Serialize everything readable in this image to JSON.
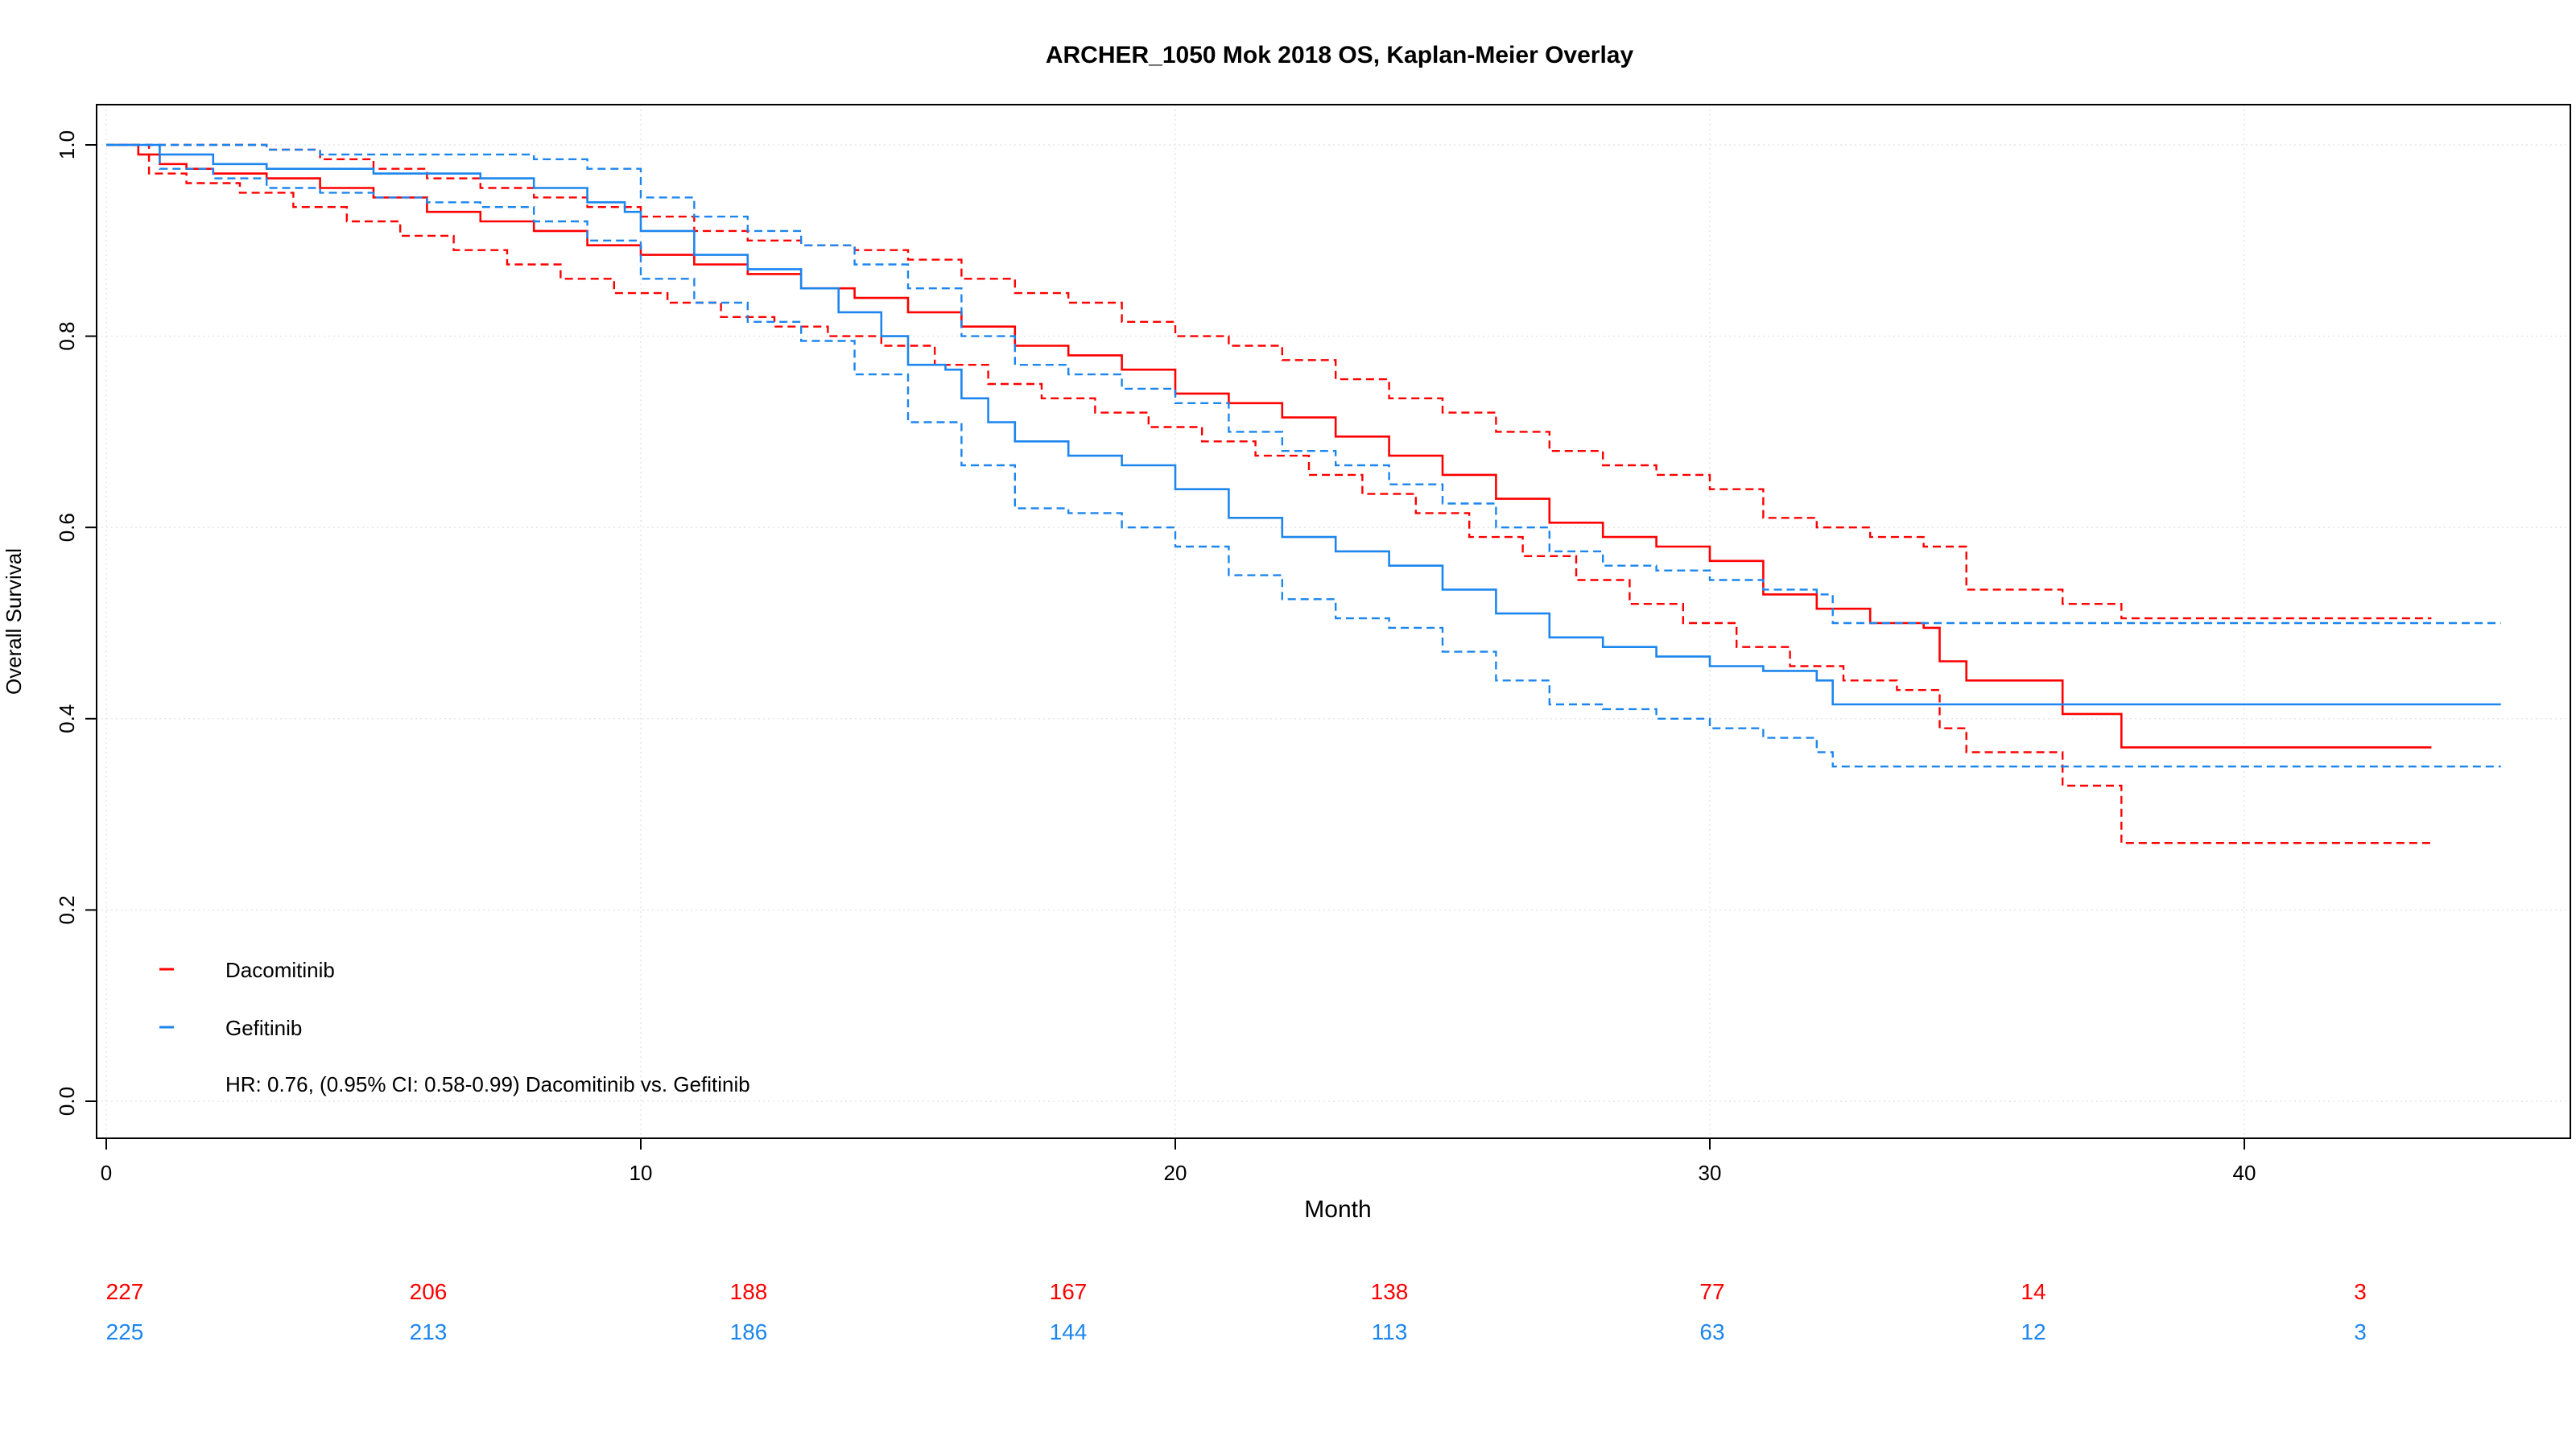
{
  "colors": {
    "dacomitinib": "#ff0000",
    "gefitinib": "#1c86ee",
    "frame": "#000000",
    "grid": "#e6e6e6"
  },
  "chart_data": {
    "type": "line",
    "subtype": "kaplan-meier",
    "title": "ARCHER_1050 Mok 2018 OS, Kaplan-Meier Overlay",
    "xlabel": "Month",
    "ylabel": "Overall Survival",
    "xlim": [
      0,
      46
    ],
    "ylim": [
      0,
      1.0
    ],
    "x_ticks": [
      0,
      10,
      20,
      30,
      40
    ],
    "y_ticks": [
      0.0,
      0.2,
      0.4,
      0.6,
      0.8,
      1.0
    ],
    "grid": true,
    "legend_position": "bottom-left",
    "legend": [
      "Dacomitinib",
      "Gefitinib"
    ],
    "annotation": "HR: 0.76, (0.95% CI: 0.58-0.99) Dacomitinib vs. Gefitinib",
    "series": [
      {
        "name": "Dacomitinib",
        "color": "#ff0000",
        "style": "solid",
        "x": [
          0,
          0.6,
          1.0,
          1.5,
          2.0,
          3.0,
          4.0,
          5.0,
          6.0,
          7.0,
          8.0,
          9.0,
          10.0,
          11.0,
          12.0,
          13.0,
          14.0,
          15.0,
          16.0,
          17.0,
          18.0,
          19.0,
          20.0,
          21.0,
          22.0,
          23.0,
          24.0,
          25.0,
          26.0,
          27.0,
          28.0,
          29.0,
          30.0,
          31.0,
          32.0,
          33.0,
          34.0,
          34.3,
          34.8,
          36.6,
          37.7,
          43.5
        ],
        "y": [
          1.0,
          0.99,
          0.98,
          0.975,
          0.97,
          0.965,
          0.955,
          0.945,
          0.93,
          0.92,
          0.91,
          0.895,
          0.885,
          0.875,
          0.865,
          0.85,
          0.84,
          0.825,
          0.81,
          0.79,
          0.78,
          0.765,
          0.74,
          0.73,
          0.715,
          0.695,
          0.675,
          0.655,
          0.63,
          0.605,
          0.59,
          0.58,
          0.565,
          0.53,
          0.515,
          0.5,
          0.495,
          0.46,
          0.44,
          0.405,
          0.37,
          0.37
        ]
      },
      {
        "name": "Dacomitinib upper CI",
        "color": "#ff0000",
        "style": "dashed",
        "x": [
          0,
          1,
          2,
          3,
          4,
          5,
          6,
          7,
          8,
          9,
          10,
          11,
          12,
          13,
          14,
          15,
          16,
          17,
          18,
          19,
          20,
          21,
          22,
          23,
          24,
          25,
          26,
          27,
          28,
          29,
          30,
          31,
          32,
          33,
          34,
          34.8,
          36.6,
          37.7,
          43.5
        ],
        "y": [
          1.0,
          1.0,
          1.0,
          0.995,
          0.985,
          0.975,
          0.965,
          0.955,
          0.945,
          0.935,
          0.925,
          0.91,
          0.9,
          0.895,
          0.89,
          0.88,
          0.86,
          0.845,
          0.835,
          0.815,
          0.8,
          0.79,
          0.775,
          0.755,
          0.735,
          0.72,
          0.7,
          0.68,
          0.665,
          0.655,
          0.64,
          0.61,
          0.6,
          0.59,
          0.58,
          0.535,
          0.52,
          0.505,
          0.505
        ]
      },
      {
        "name": "Dacomitinib lower CI",
        "color": "#ff0000",
        "style": "dashed",
        "x": [
          0,
          0.8,
          1.5,
          2.5,
          3.5,
          4.5,
          5.5,
          6.5,
          7.5,
          8.5,
          9.5,
          10.5,
          11.5,
          12.5,
          13.5,
          14.5,
          15.5,
          16.5,
          17.5,
          18.5,
          19.5,
          20.5,
          21.5,
          22.5,
          23.5,
          24.5,
          25.5,
          26.5,
          27.5,
          28.5,
          29.5,
          30.5,
          31.5,
          32.5,
          33.5,
          34.3,
          34.8,
          36.6,
          37.7,
          43.5
        ],
        "y": [
          1.0,
          0.97,
          0.96,
          0.95,
          0.935,
          0.92,
          0.905,
          0.89,
          0.875,
          0.86,
          0.845,
          0.835,
          0.82,
          0.81,
          0.8,
          0.79,
          0.77,
          0.75,
          0.735,
          0.72,
          0.705,
          0.69,
          0.675,
          0.655,
          0.635,
          0.615,
          0.59,
          0.57,
          0.545,
          0.52,
          0.5,
          0.475,
          0.455,
          0.44,
          0.43,
          0.39,
          0.365,
          0.33,
          0.27,
          0.27
        ]
      },
      {
        "name": "Gefitinib",
        "color": "#1c86ee",
        "style": "solid",
        "x": [
          0,
          1.0,
          2.0,
          3.0,
          5.0,
          7.0,
          8.0,
          9.0,
          9.7,
          10.0,
          11.0,
          12.0,
          13.0,
          13.7,
          14.5,
          15.0,
          15.7,
          16.0,
          16.5,
          17.0,
          18.0,
          19.0,
          20.0,
          21.0,
          22.0,
          23.0,
          24.0,
          25.0,
          26.0,
          27.0,
          28.0,
          29.0,
          30.0,
          31.0,
          32.0,
          32.3,
          44.8
        ],
        "y": [
          1.0,
          0.99,
          0.98,
          0.975,
          0.97,
          0.965,
          0.955,
          0.94,
          0.93,
          0.91,
          0.885,
          0.87,
          0.85,
          0.825,
          0.8,
          0.77,
          0.765,
          0.735,
          0.71,
          0.69,
          0.675,
          0.665,
          0.64,
          0.61,
          0.59,
          0.575,
          0.56,
          0.535,
          0.51,
          0.485,
          0.475,
          0.465,
          0.455,
          0.45,
          0.44,
          0.415,
          0.415
        ]
      },
      {
        "name": "Gefitinib upper CI",
        "color": "#1c86ee",
        "style": "dashed",
        "x": [
          0,
          1,
          2,
          3,
          4,
          5,
          6,
          7,
          8,
          9,
          10,
          11,
          12,
          13,
          14,
          15,
          16,
          17,
          18,
          19,
          20,
          21,
          22,
          23,
          24,
          25,
          26,
          27,
          28,
          29,
          30,
          31,
          32,
          32.3,
          44.8
        ],
        "y": [
          1.0,
          1.0,
          1.0,
          0.995,
          0.99,
          0.99,
          0.99,
          0.99,
          0.985,
          0.975,
          0.945,
          0.925,
          0.91,
          0.895,
          0.875,
          0.85,
          0.8,
          0.77,
          0.76,
          0.745,
          0.73,
          0.7,
          0.68,
          0.665,
          0.645,
          0.625,
          0.6,
          0.575,
          0.56,
          0.555,
          0.545,
          0.535,
          0.53,
          0.5,
          0.5
        ]
      },
      {
        "name": "Gefitinib lower CI",
        "color": "#1c86ee",
        "style": "dashed",
        "x": [
          0,
          1,
          2,
          3,
          4,
          5,
          6,
          7,
          8,
          9,
          10,
          11,
          12,
          13,
          14,
          15,
          16,
          17,
          18,
          19,
          20,
          21,
          22,
          23,
          24,
          25,
          26,
          27,
          28,
          29,
          30,
          31,
          32,
          32.3,
          44.8
        ],
        "y": [
          1.0,
          0.975,
          0.965,
          0.955,
          0.95,
          0.945,
          0.94,
          0.935,
          0.92,
          0.9,
          0.86,
          0.835,
          0.815,
          0.795,
          0.76,
          0.71,
          0.665,
          0.62,
          0.615,
          0.6,
          0.58,
          0.55,
          0.525,
          0.505,
          0.495,
          0.47,
          0.44,
          0.415,
          0.41,
          0.4,
          0.39,
          0.38,
          0.365,
          0.35,
          0.35
        ]
      }
    ],
    "risk_table": {
      "times": [
        0,
        6,
        12,
        18,
        24,
        30,
        36,
        42
      ],
      "rows": [
        {
          "name": "Dacomitinib",
          "color": "#ff0000",
          "values": [
            227,
            206,
            188,
            167,
            138,
            77,
            14,
            3
          ]
        },
        {
          "name": "Gefitinib",
          "color": "#1c86ee",
          "values": [
            225,
            213,
            186,
            144,
            113,
            63,
            12,
            3
          ]
        }
      ]
    }
  }
}
